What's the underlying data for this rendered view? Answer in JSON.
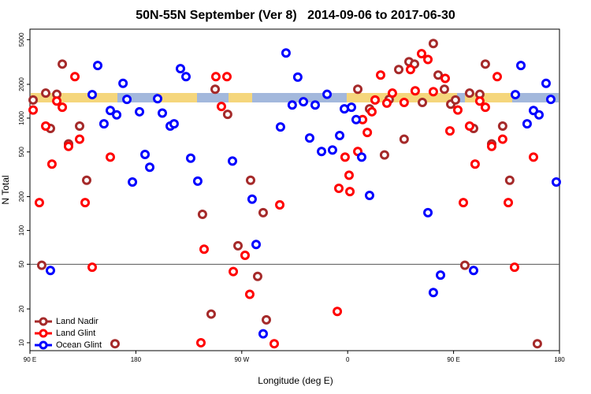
{
  "chart_data": {
    "type": "scatter",
    "title": "50N-55N September (Ver 8)   2014-09-06 to 2017-06-30",
    "x_label": "Longitude (deg E)",
    "y_label": "N Total",
    "xlim": [
      90,
      540
    ],
    "ylim": [
      8.5,
      6200
    ],
    "ylog": true,
    "xticks": [
      {
        "value": 90,
        "label": "90 E"
      },
      180,
      {
        "value": 270,
        "label": "90 W"
      },
      {
        "value": 360,
        "label": "0"
      },
      {
        "value": 450,
        "label": "90 E"
      },
      {
        "value": 540,
        "label": "180"
      }
    ],
    "yticks": [
      10,
      20,
      50,
      100,
      200,
      500,
      1000,
      2000,
      5000
    ],
    "hline": 50,
    "legend": "lower left",
    "series": [
      {
        "name": "Land Nadir",
        "color": "#a52a2a",
        "x": [
          92.7,
          100,
          103.4,
          107.4,
          112.8,
          117.5,
          122.8,
          132.2,
          138.2,
          162.3,
          236.6,
          244,
          247.4,
          258,
          266.8,
          277.5,
          283.5,
          288.2,
          290.9,
          368.6,
          378.6,
          391.3,
          395.3,
          403.4,
          408,
          412.1,
          416.8,
          423.5,
          432.8,
          436.9,
          442.2,
          447.6,
          451.6,
          459.6,
          463.6,
          467,
          472.3,
          477,
          482.4,
          491.7,
          497.7,
          521.2
        ],
        "values": [
          1450,
          49,
          1670,
          810,
          1630,
          3030,
          590,
          850,
          280,
          9.8,
          139,
          18,
          1810,
          1080,
          73,
          280,
          39,
          144,
          16,
          1810,
          1210,
          470,
          1470,
          2710,
          650,
          3180,
          3030,
          1380,
          4620,
          2420,
          1810,
          1330,
          1450,
          49,
          1670,
          810,
          1630,
          3030,
          590,
          850,
          280,
          9.8
        ]
      },
      {
        "name": "Land Glint",
        "color": "#ff0000",
        "x": [
          92.7,
          98,
          103.4,
          108.7,
          112.8,
          117.5,
          122.8,
          128.2,
          132.2,
          136.9,
          142.9,
          158.3,
          235.3,
          238,
          248,
          252.7,
          257.4,
          262.8,
          272.8,
          276.8,
          297.6,
          302.3,
          351.2,
          352.5,
          357.8,
          361.2,
          361.9,
          368.6,
          372.7,
          376.7,
          380.6,
          383.3,
          388,
          393.3,
          398,
          408,
          413.4,
          417.4,
          422.8,
          428.2,
          432.8,
          442.9,
          446.9,
          453.6,
          458.3,
          463.6,
          468.3,
          472.3,
          477,
          482.4,
          487.1,
          491.7,
          496.5,
          501.8,
          517.9
        ],
        "values": [
          1180,
          177,
          850,
          390,
          1420,
          1250,
          560,
          2340,
          650,
          177,
          47,
          450,
          10,
          68,
          2340,
          1270,
          2340,
          43,
          60,
          27,
          9.8,
          169,
          19,
          237,
          450,
          310,
          222,
          505,
          970,
          745,
          1140,
          1450,
          2420,
          1360,
          1670,
          1380,
          2710,
          1750,
          3750,
          3330,
          1720,
          2260,
          770,
          1180,
          177,
          850,
          390,
          1420,
          1250,
          560,
          2340,
          650,
          177,
          47,
          450
        ]
      },
      {
        "name": "Ocean Glint",
        "color": "#0000ff",
        "x": [
          107.4,
          142.9,
          147.6,
          152.9,
          158.3,
          163.7,
          169.1,
          172.4,
          177.1,
          183.1,
          187.8,
          191.8,
          198.5,
          202.5,
          209.2,
          212.5,
          217.9,
          222.6,
          226.6,
          232.6,
          262.1,
          278.8,
          282.2,
          288.2,
          302.9,
          307.6,
          312.9,
          317.6,
          322.4,
          327.7,
          332.4,
          337.8,
          342.5,
          347.1,
          353.2,
          357.2,
          363.2,
          367.2,
          371.9,
          378.6,
          428.2,
          432.8,
          438.9,
          467,
          502.5,
          507.2,
          512.5,
          517.9,
          522.6,
          528.6,
          532.6,
          537.3
        ],
        "values": [
          44,
          1620,
          2940,
          890,
          1170,
          1070,
          2040,
          1470,
          270,
          1140,
          475,
          365,
          1490,
          1110,
          850,
          890,
          2760,
          2340,
          440,
          275,
          415,
          190,
          75,
          12,
          835,
          3800,
          1310,
          2320,
          1400,
          665,
          1310,
          505,
          1630,
          520,
          700,
          1210,
          1250,
          970,
          450,
          205,
          144,
          28,
          40,
          44,
          1620,
          2940,
          890,
          1170,
          1070,
          2040,
          1470,
          270
        ]
      }
    ]
  }
}
